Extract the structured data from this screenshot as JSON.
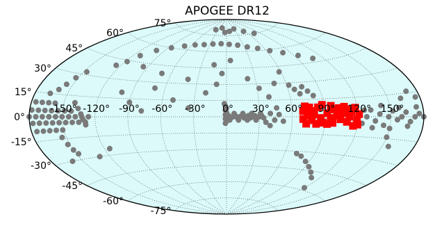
{
  "chart_data": {
    "type": "scatter",
    "title": "APOGEE DR12",
    "projection": "aitoff",
    "grid": true,
    "background_color": "#dcfafa",
    "lon_ticks": [
      "-150°",
      "-120°",
      "-90°",
      "-60°",
      "-30°",
      "0°",
      "30°",
      "60°",
      "90°",
      "120°",
      "150°"
    ],
    "lat_ticks": [
      "75°",
      "60°",
      "45°",
      "30°",
      "15°",
      "0°",
      "-15°",
      "-30°",
      "-45°",
      "-60°",
      "-75°"
    ],
    "series": [
      {
        "marker": "circle",
        "color": "#7a7a7a",
        "points": [
          [
            -180,
            0
          ],
          [
            -174,
            0
          ],
          [
            -168,
            0
          ],
          [
            -162,
            0
          ],
          [
            -156,
            0
          ],
          [
            -150,
            0
          ],
          [
            -144,
            0
          ],
          [
            -138,
            0
          ],
          [
            -132,
            0
          ],
          [
            -126,
            0
          ],
          [
            -177,
            -4
          ],
          [
            -171,
            -4
          ],
          [
            -165,
            -4
          ],
          [
            -159,
            -4
          ],
          [
            -153,
            -4
          ],
          [
            -147,
            -4
          ],
          [
            -141,
            -4
          ],
          [
            -135,
            -4
          ],
          [
            -129,
            -4
          ],
          [
            -178,
            4
          ],
          [
            -172,
            4
          ],
          [
            -166,
            4
          ],
          [
            -160,
            4
          ],
          [
            -154,
            4
          ],
          [
            -148,
            4
          ],
          [
            -142,
            4
          ],
          [
            -175,
            -9
          ],
          [
            -169,
            -9
          ],
          [
            -163,
            -9
          ],
          [
            -157,
            -9
          ],
          [
            -151,
            -9
          ],
          [
            -176,
            9
          ],
          [
            -170,
            9
          ],
          [
            -164,
            9
          ],
          [
            -158,
            9
          ],
          [
            -154,
            -14
          ],
          [
            -152,
            -19
          ],
          [
            -150,
            -23
          ],
          [
            -148,
            -26
          ],
          [
            -160,
            18
          ],
          [
            -156,
            22
          ],
          [
            -152,
            27
          ],
          [
            -147,
            32
          ],
          [
            -166,
            15
          ],
          [
            -140,
            10
          ],
          [
            -136,
            6
          ],
          [
            -133,
            2
          ],
          [
            -131,
            -2
          ],
          [
            -129,
            -6
          ],
          [
            -118,
            44
          ],
          [
            -112,
            50
          ],
          [
            -125,
            40
          ],
          [
            -101,
            56
          ],
          [
            -86,
            60
          ],
          [
            -70,
            63
          ],
          [
            -55,
            65
          ],
          [
            -40,
            66
          ],
          [
            -25,
            67
          ],
          [
            -10,
            67.5
          ],
          [
            5,
            67
          ],
          [
            20,
            66
          ],
          [
            35,
            64
          ],
          [
            50,
            62
          ],
          [
            65,
            59
          ],
          [
            80,
            56
          ],
          [
            95,
            52
          ],
          [
            108,
            48
          ],
          [
            -40,
            80
          ],
          [
            -20,
            82
          ],
          [
            -5,
            78
          ],
          [
            10,
            79
          ],
          [
            30,
            81
          ],
          [
            55,
            78
          ],
          [
            75,
            75
          ],
          [
            -95,
            42
          ],
          [
            -70,
            38
          ],
          [
            -40,
            34
          ],
          [
            -10,
            30
          ],
          [
            -100,
            20
          ],
          [
            -90,
            12
          ],
          [
            -78,
            5
          ],
          [
            -70,
            25
          ],
          [
            -50,
            15
          ],
          [
            -35,
            8
          ],
          [
            -20,
            22
          ],
          [
            -15,
            48
          ],
          [
            -5,
            40
          ],
          [
            5,
            52
          ],
          [
            22,
            35
          ],
          [
            32,
            26
          ],
          [
            40,
            18
          ],
          [
            48,
            30
          ],
          [
            58,
            40
          ],
          [
            -160,
            -30
          ],
          [
            -130,
            -30
          ],
          [
            -115,
            -25
          ],
          [
            -2,
            12
          ],
          [
            -1,
            10
          ],
          [
            0,
            8
          ],
          [
            -1,
            6
          ],
          [
            0,
            4
          ],
          [
            -1,
            2
          ],
          [
            0,
            0
          ],
          [
            -1,
            -2
          ],
          [
            0,
            -4
          ],
          [
            -1,
            -6
          ],
          [
            0,
            0
          ],
          [
            2,
            1
          ],
          [
            4,
            -1
          ],
          [
            6,
            0
          ],
          [
            8,
            1
          ],
          [
            10,
            -1
          ],
          [
            12,
            0
          ],
          [
            14,
            1
          ],
          [
            16,
            -1
          ],
          [
            18,
            0
          ],
          [
            20,
            1
          ],
          [
            22,
            -1
          ],
          [
            24,
            0
          ],
          [
            26,
            1
          ],
          [
            28,
            -1
          ],
          [
            30,
            0
          ],
          [
            32,
            1
          ],
          [
            34,
            -1
          ],
          [
            3,
            -3
          ],
          [
            7,
            3
          ],
          [
            11,
            -3
          ],
          [
            15,
            3
          ],
          [
            19,
            -3
          ],
          [
            23,
            3
          ],
          [
            27,
            -3
          ],
          [
            31,
            3
          ],
          [
            36,
            -5
          ],
          [
            40,
            3
          ],
          [
            44,
            -3
          ],
          [
            48,
            2
          ],
          [
            52,
            -4
          ],
          [
            40,
            -8
          ],
          [
            46,
            8
          ],
          [
            62,
            28
          ],
          [
            66,
            24
          ],
          [
            70,
            20
          ],
          [
            74,
            26
          ],
          [
            78,
            22
          ],
          [
            82,
            18
          ],
          [
            124,
            -5
          ],
          [
            128,
            0
          ],
          [
            132,
            5
          ],
          [
            136,
            -3
          ],
          [
            140,
            2
          ],
          [
            144,
            -6
          ],
          [
            148,
            0
          ],
          [
            152,
            4
          ],
          [
            156,
            -2
          ],
          [
            160,
            0
          ],
          [
            164,
            3
          ],
          [
            168,
            -3
          ],
          [
            172,
            0
          ],
          [
            176,
            2
          ],
          [
            180,
            0
          ],
          [
            126,
            5
          ],
          [
            134,
            -8
          ],
          [
            142,
            8
          ],
          [
            150,
            -8
          ],
          [
            158,
            6
          ],
          [
            166,
            -6
          ],
          [
            174,
            6
          ],
          [
            150,
            -14
          ],
          [
            156,
            -20
          ],
          [
            162,
            12
          ],
          [
            170,
            16
          ],
          [
            176,
            12
          ],
          [
            78,
            -34
          ],
          [
            86,
            -38
          ],
          [
            94,
            -42
          ],
          [
            102,
            -46
          ],
          [
            110,
            -50
          ],
          [
            72,
            -32
          ],
          [
            120,
            -58
          ]
        ]
      },
      {
        "marker": "square",
        "color": "#ff0000",
        "points": [
          [
            70,
            5
          ],
          [
            74,
            1
          ],
          [
            78,
            -3
          ],
          [
            82,
            -6
          ],
          [
            70,
            -2
          ],
          [
            73,
            -6
          ],
          [
            77,
            5
          ],
          [
            80,
            2
          ],
          [
            84,
            8
          ],
          [
            86,
            -1
          ],
          [
            88,
            -5
          ],
          [
            72,
            9
          ],
          [
            76,
            8
          ],
          [
            92,
            3
          ],
          [
            95,
            -1
          ],
          [
            97,
            -5
          ],
          [
            92,
            -6
          ],
          [
            99,
            6
          ],
          [
            101,
            1
          ],
          [
            104,
            -2
          ],
          [
            106,
            3
          ],
          [
            103,
            7
          ],
          [
            108,
            8
          ],
          [
            110,
            -4
          ],
          [
            112,
            0
          ],
          [
            114,
            4
          ],
          [
            116,
            -7
          ],
          [
            118,
            7
          ],
          [
            119,
            -2
          ],
          [
            121,
            2
          ],
          [
            120,
            -6
          ],
          [
            96,
            9
          ],
          [
            88,
            10
          ],
          [
            110,
            6
          ]
        ]
      }
    ]
  }
}
